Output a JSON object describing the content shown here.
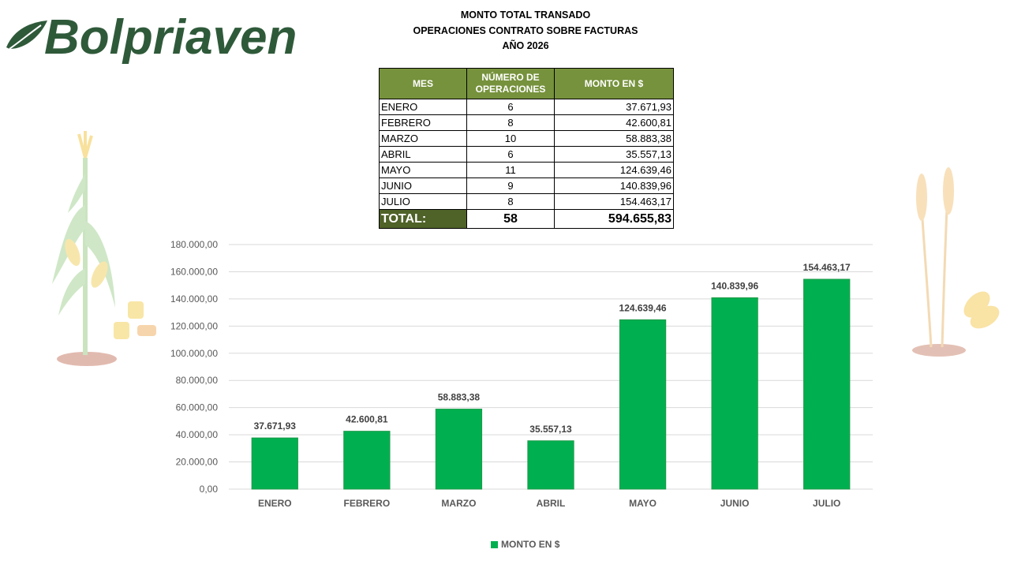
{
  "brand": {
    "name": "Bolpriaven",
    "color": "#2f5a3a"
  },
  "titles": {
    "line1": "MONTO TOTAL TRANSADO",
    "line2": "OPERACIONES CONTRATO SOBRE FACTURAS",
    "line3": "AÑO 2026"
  },
  "table": {
    "headers": {
      "month": "MES",
      "ops": "NÚMERO DE OPERACIONES",
      "amount": "MONTO EN $"
    },
    "rows": [
      {
        "month": "ENERO",
        "ops": "6",
        "amount": "37.671,93"
      },
      {
        "month": "FEBRERO",
        "ops": "8",
        "amount": "42.600,81"
      },
      {
        "month": "MARZO",
        "ops": "10",
        "amount": "58.883,38"
      },
      {
        "month": "ABRIL",
        "ops": "6",
        "amount": "35.557,13"
      },
      {
        "month": "MAYO",
        "ops": "11",
        "amount": "124.639,46"
      },
      {
        "month": "JUNIO",
        "ops": "9",
        "amount": "140.839,96"
      },
      {
        "month": "JULIO",
        "ops": "8",
        "amount": "154.463,17"
      }
    ],
    "total": {
      "label": "TOTAL:",
      "ops": "58",
      "amount": "594.655,83"
    },
    "header_color": "#76923c",
    "total_label_color": "#4f6228"
  },
  "chart_data": {
    "type": "bar",
    "categories": [
      "ENERO",
      "FEBRERO",
      "MARZO",
      "ABRIL",
      "MAYO",
      "JUNIO",
      "JULIO"
    ],
    "series": [
      {
        "name": "MONTO EN $",
        "values": [
          37671.93,
          42600.81,
          58883.38,
          35557.13,
          124639.46,
          140839.96,
          154463.17
        ],
        "color": "#00b050"
      }
    ],
    "data_labels": [
      "37.671,93",
      "42.600,81",
      "58.883,38",
      "35.557,13",
      "124.639,46",
      "140.839,96",
      "154.463,17"
    ],
    "ylim": [
      0,
      180000
    ],
    "yticks": [
      0,
      20000,
      40000,
      60000,
      80000,
      100000,
      120000,
      140000,
      160000,
      180000
    ],
    "ytick_labels": [
      "0,00",
      "20.000,00",
      "40.000,00",
      "60.000,00",
      "80.000,00",
      "100.000,00",
      "120.000,00",
      "140.000,00",
      "160.000,00",
      "180.000,00"
    ],
    "grid": true,
    "legend": "bottom",
    "xlabel": "",
    "ylabel": ""
  }
}
